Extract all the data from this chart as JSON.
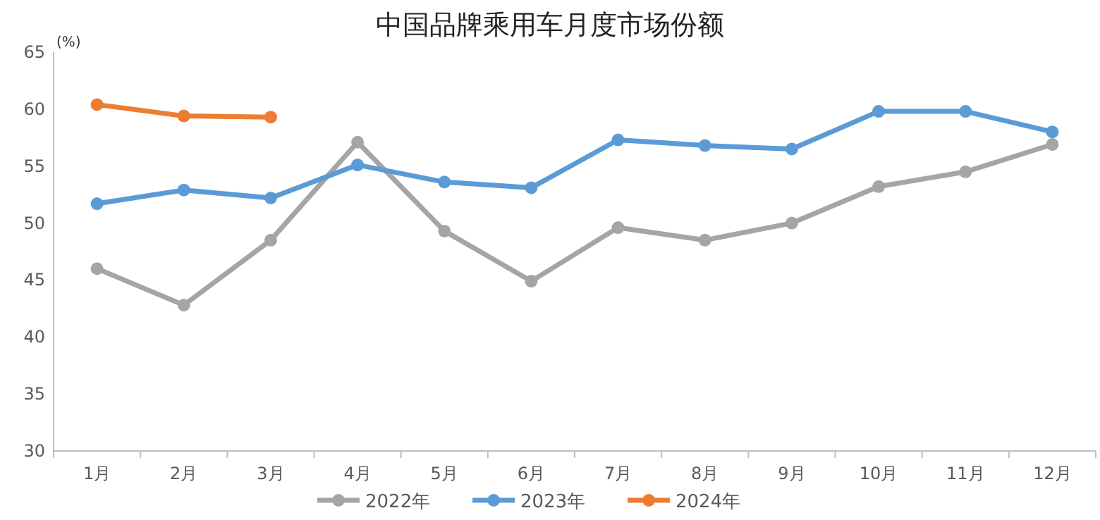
{
  "chart_data": {
    "type": "line",
    "title": "中国品牌乘用车月度市场份额",
    "ylabel": "(%)",
    "categories": [
      "1月",
      "2月",
      "3月",
      "4月",
      "5月",
      "6月",
      "7月",
      "8月",
      "9月",
      "10月",
      "11月",
      "12月"
    ],
    "series": [
      {
        "name": "2022年",
        "color": "#a5a5a5",
        "values": [
          46.0,
          42.8,
          48.5,
          57.1,
          49.3,
          44.9,
          49.6,
          48.5,
          50.0,
          53.2,
          54.5,
          56.9
        ]
      },
      {
        "name": "2023年",
        "color": "#5b9bd5",
        "values": [
          51.7,
          52.9,
          52.2,
          55.1,
          53.6,
          53.1,
          57.3,
          56.8,
          56.5,
          59.8,
          59.8,
          58.0
        ]
      },
      {
        "name": "2024年",
        "color": "#ed7d31",
        "values": [
          60.4,
          59.4,
          59.3,
          null,
          null,
          null,
          null,
          null,
          null,
          null,
          null,
          null
        ]
      }
    ],
    "ylim": [
      30,
      65
    ],
    "yticks": [
      30,
      35,
      40,
      45,
      50,
      55,
      60,
      65
    ],
    "legend": "bottom",
    "marker": "circle",
    "line_style": "solid"
  }
}
